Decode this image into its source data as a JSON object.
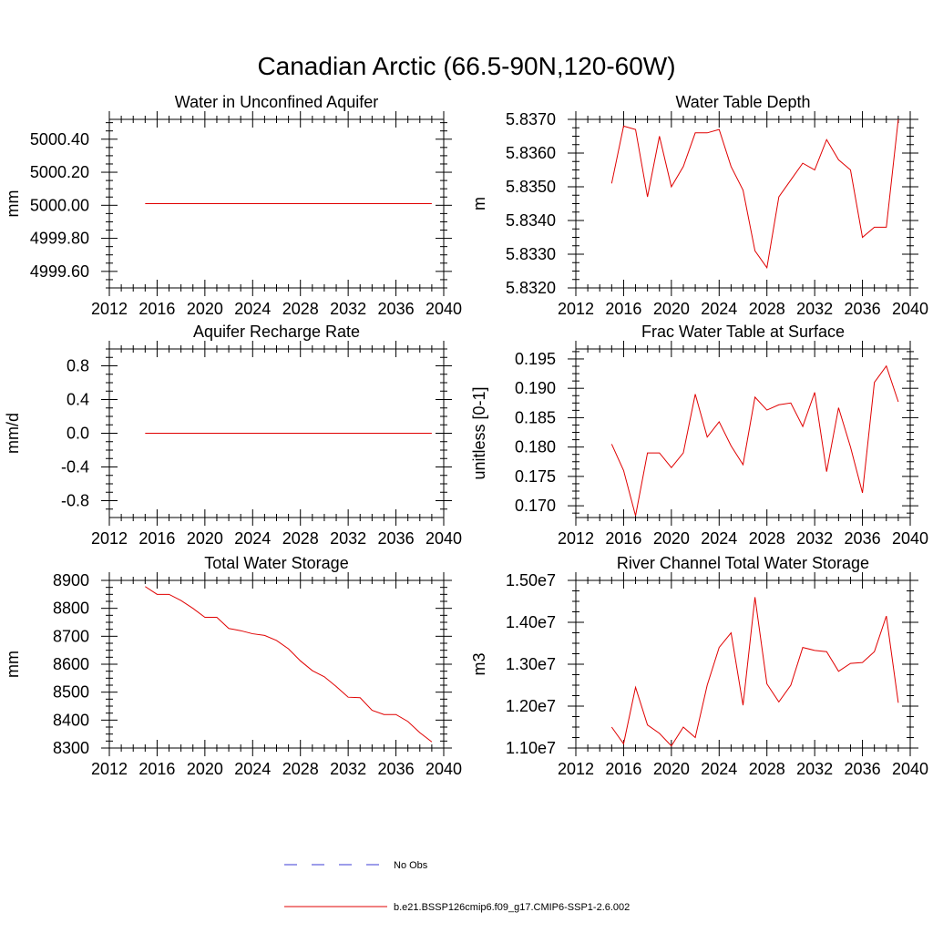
{
  "figure": {
    "title": "Canadian Arctic (66.5-90N,120-60W)"
  },
  "legend": {
    "entries": [
      {
        "label": "No Obs",
        "color": "#3b3bd6",
        "dash": "dashed"
      },
      {
        "label": "b.e21.BSSP126cmip6.f09_g17.CMIP6-SSP1-2.6.002",
        "color": "#e00000",
        "dash": "solid"
      }
    ]
  },
  "colors": {
    "series": "#e00000",
    "obs": "#3b3bd6",
    "axis": "#000000"
  },
  "chart_data": [
    {
      "type": "line",
      "title": "Water in Unconfined Aquifer",
      "ylabel": "mm",
      "xlim": [
        2012,
        2040
      ],
      "ylim": [
        4999.5,
        5000.52
      ],
      "xticks": [
        2012,
        2016,
        2020,
        2024,
        2028,
        2032,
        2036,
        2040
      ],
      "xtick_labels": [
        "2012",
        "2016",
        "2020",
        "2024",
        "2028",
        "2032",
        "2036",
        "2040"
      ],
      "yticks": [
        4999.6,
        4999.8,
        5000.0,
        5000.2,
        5000.4
      ],
      "ytick_labels": [
        "4999.60",
        "4999.80",
        "5000.00",
        "5000.20",
        "5000.40"
      ],
      "series": [
        {
          "name": "b.e21.BSSP126cmip6.f09_g17.CMIP6-SSP1-2.6.002",
          "x": [
            2015,
            2016,
            2017,
            2018,
            2019,
            2020,
            2021,
            2022,
            2023,
            2024,
            2025,
            2026,
            2027,
            2028,
            2029,
            2030,
            2031,
            2032,
            2033,
            2034,
            2035,
            2036,
            2037,
            2038,
            2039
          ],
          "y": [
            5000.01,
            5000.01,
            5000.01,
            5000.01,
            5000.01,
            5000.01,
            5000.01,
            5000.01,
            5000.01,
            5000.01,
            5000.01,
            5000.01,
            5000.01,
            5000.01,
            5000.01,
            5000.01,
            5000.01,
            5000.01,
            5000.01,
            5000.01,
            5000.01,
            5000.01,
            5000.01,
            5000.01,
            5000.01
          ]
        }
      ]
    },
    {
      "type": "line",
      "title": "Water Table Depth",
      "ylabel": "m",
      "xlim": [
        2012,
        2040
      ],
      "ylim": [
        5.832,
        5.837
      ],
      "xticks": [
        2012,
        2016,
        2020,
        2024,
        2028,
        2032,
        2036,
        2040
      ],
      "xtick_labels": [
        "2012",
        "2016",
        "2020",
        "2024",
        "2028",
        "2032",
        "2036",
        "2040"
      ],
      "yticks": [
        5.832,
        5.833,
        5.834,
        5.835,
        5.836,
        5.837
      ],
      "ytick_labels": [
        "5.8320",
        "5.8330",
        "5.8340",
        "5.8350",
        "5.8360",
        "5.8370"
      ],
      "series": [
        {
          "name": "b.e21.BSSP126cmip6.f09_g17.CMIP6-SSP1-2.6.002",
          "x": [
            2015,
            2016,
            2017,
            2018,
            2019,
            2020,
            2021,
            2022,
            2023,
            2024,
            2025,
            2026,
            2027,
            2028,
            2029,
            2030,
            2031,
            2032,
            2033,
            2034,
            2035,
            2036,
            2037,
            2038,
            2039
          ],
          "y": [
            5.8351,
            5.8368,
            5.8367,
            5.8347,
            5.8365,
            5.835,
            5.8356,
            5.8366,
            5.8366,
            5.8367,
            5.8356,
            5.8349,
            5.8331,
            5.8326,
            5.8347,
            5.8352,
            5.8357,
            5.8355,
            5.8364,
            5.8358,
            5.8355,
            5.8335,
            5.8338,
            5.8338,
            5.837
          ]
        }
      ]
    },
    {
      "type": "line",
      "title": "Aquifer Recharge Rate",
      "ylabel": "mm/d",
      "xlim": [
        2012,
        2040
      ],
      "ylim": [
        -1.0,
        1.0
      ],
      "xticks": [
        2012,
        2016,
        2020,
        2024,
        2028,
        2032,
        2036,
        2040
      ],
      "xtick_labels": [
        "2012",
        "2016",
        "2020",
        "2024",
        "2028",
        "2032",
        "2036",
        "2040"
      ],
      "yticks": [
        -0.8,
        -0.4,
        0.0,
        0.4,
        0.8
      ],
      "ytick_labels": [
        "-0.8",
        "-0.4",
        "0.0",
        "0.4",
        "0.8"
      ],
      "series": [
        {
          "name": "b.e21.BSSP126cmip6.f09_g17.CMIP6-SSP1-2.6.002",
          "x": [
            2015,
            2016,
            2017,
            2018,
            2019,
            2020,
            2021,
            2022,
            2023,
            2024,
            2025,
            2026,
            2027,
            2028,
            2029,
            2030,
            2031,
            2032,
            2033,
            2034,
            2035,
            2036,
            2037,
            2038,
            2039
          ],
          "y": [
            0,
            0,
            0,
            0,
            0,
            0,
            0,
            0,
            0,
            0,
            0,
            0,
            0,
            0,
            0,
            0,
            0,
            0,
            0,
            0,
            0,
            0,
            0,
            0,
            0
          ]
        }
      ]
    },
    {
      "type": "line",
      "title": "Frac Water Table at Surface",
      "ylabel": "unitless [0-1]",
      "xlim": [
        2012,
        2040
      ],
      "ylim": [
        0.168,
        0.1967
      ],
      "xticks": [
        2012,
        2016,
        2020,
        2024,
        2028,
        2032,
        2036,
        2040
      ],
      "xtick_labels": [
        "2012",
        "2016",
        "2020",
        "2024",
        "2028",
        "2032",
        "2036",
        "2040"
      ],
      "yticks": [
        0.17,
        0.175,
        0.18,
        0.185,
        0.19,
        0.195
      ],
      "ytick_labels": [
        "0.170",
        "0.175",
        "0.180",
        "0.185",
        "0.190",
        "0.195"
      ],
      "series": [
        {
          "name": "b.e21.BSSP126cmip6.f09_g17.CMIP6-SSP1-2.6.002",
          "x": [
            2015,
            2016,
            2017,
            2018,
            2019,
            2020,
            2021,
            2022,
            2023,
            2024,
            2025,
            2026,
            2027,
            2028,
            2029,
            2030,
            2031,
            2032,
            2033,
            2034,
            2035,
            2036,
            2037,
            2038,
            2039
          ],
          "y": [
            0.1805,
            0.176,
            0.1683,
            0.179,
            0.179,
            0.1765,
            0.179,
            0.189,
            0.1817,
            0.1843,
            0.1802,
            0.177,
            0.1885,
            0.1863,
            0.1872,
            0.1875,
            0.1835,
            0.1893,
            0.1758,
            0.1867,
            0.18,
            0.1722,
            0.191,
            0.1938,
            0.1877
          ]
        }
      ]
    },
    {
      "type": "line",
      "title": "Total Water Storage",
      "ylabel": "mm",
      "xlim": [
        2012,
        2040
      ],
      "ylim": [
        8300,
        8900
      ],
      "xticks": [
        2012,
        2016,
        2020,
        2024,
        2028,
        2032,
        2036,
        2040
      ],
      "xtick_labels": [
        "2012",
        "2016",
        "2020",
        "2024",
        "2028",
        "2032",
        "2036",
        "2040"
      ],
      "yticks": [
        8300,
        8400,
        8500,
        8600,
        8700,
        8800,
        8900
      ],
      "ytick_labels": [
        "8300",
        "8400",
        "8500",
        "8600",
        "8700",
        "8800",
        "8900"
      ],
      "series": [
        {
          "name": "b.e21.BSSP126cmip6.f09_g17.CMIP6-SSP1-2.6.002",
          "x": [
            2015,
            2016,
            2017,
            2018,
            2019,
            2020,
            2021,
            2022,
            2023,
            2024,
            2025,
            2026,
            2027,
            2028,
            2029,
            2030,
            2031,
            2032,
            2033,
            2034,
            2035,
            2036,
            2037,
            2038,
            2039
          ],
          "y": [
            8878,
            8850,
            8850,
            8828,
            8800,
            8768,
            8768,
            8728,
            8720,
            8709,
            8703,
            8685,
            8655,
            8612,
            8577,
            8555,
            8520,
            8482,
            8480,
            8435,
            8420,
            8420,
            8395,
            8355,
            8322
          ]
        }
      ]
    },
    {
      "type": "line",
      "title": "River Channel Total Water Storage",
      "ylabel": "m3",
      "xlim": [
        2012,
        2040
      ],
      "ylim": [
        11000000,
        15000000
      ],
      "xticks": [
        2012,
        2016,
        2020,
        2024,
        2028,
        2032,
        2036,
        2040
      ],
      "xtick_labels": [
        "2012",
        "2016",
        "2020",
        "2024",
        "2028",
        "2032",
        "2036",
        "2040"
      ],
      "yticks": [
        11000000,
        12000000,
        13000000,
        14000000,
        15000000
      ],
      "ytick_labels": [
        "1.10e7",
        "1.20e7",
        "1.30e7",
        "1.40e7",
        "1.50e7"
      ],
      "series": [
        {
          "name": "b.e21.BSSP126cmip6.f09_g17.CMIP6-SSP1-2.6.002",
          "x": [
            2015,
            2016,
            2017,
            2018,
            2019,
            2020,
            2021,
            2022,
            2023,
            2024,
            2025,
            2026,
            2027,
            2028,
            2029,
            2030,
            2031,
            2032,
            2033,
            2034,
            2035,
            2036,
            2037,
            2038,
            2039
          ],
          "y": [
            11500000,
            11100000,
            12450000,
            11550000,
            11350000,
            11050000,
            11500000,
            11250000,
            12500000,
            13400000,
            13750000,
            12020000,
            14600000,
            12530000,
            12100000,
            12500000,
            13400000,
            13330000,
            13300000,
            12830000,
            13020000,
            13040000,
            13300000,
            14150000,
            12080000
          ]
        }
      ]
    }
  ]
}
